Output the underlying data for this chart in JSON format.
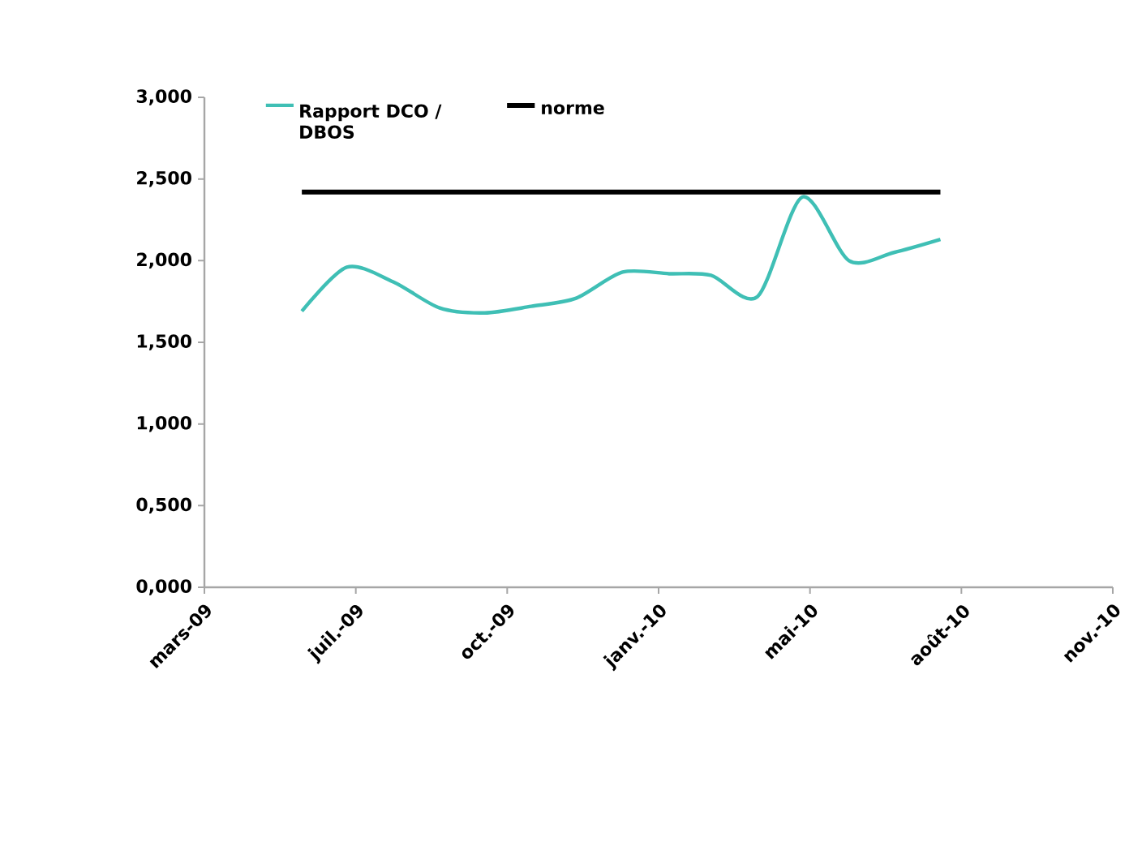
{
  "chart_data": {
    "type": "line",
    "x": [
      "2009-06-01",
      "2009-07-01",
      "2009-08-01",
      "2009-09-01",
      "2009-10-01",
      "2009-11-01",
      "2009-12-01",
      "2010-01-01",
      "2010-02-01",
      "2010-03-01",
      "2010-04-01",
      "2010-05-01",
      "2010-06-01",
      "2010-07-01",
      "2010-08-01"
    ],
    "series": [
      {
        "name": "Rapport DCO / DBOS",
        "color": "#3fbfb5",
        "values": [
          1.69,
          1.96,
          1.87,
          1.71,
          1.68,
          1.72,
          1.77,
          1.93,
          1.92,
          1.91,
          1.78,
          2.39,
          2.0,
          2.05,
          2.13
        ]
      },
      {
        "name": "norme",
        "color": "#000000",
        "x": [
          "2009-06-01",
          "2010-08-01"
        ],
        "values": [
          2.42,
          2.42
        ]
      }
    ],
    "xlim": [
      "2009-03-28",
      "2010-11-24"
    ],
    "xticks": [
      {
        "value": "2009-03-28",
        "label": "mars-09"
      },
      {
        "value": "2009-07-07",
        "label": "juil.-09"
      },
      {
        "value": "2009-10-16",
        "label": "oct.-09"
      },
      {
        "value": "2010-01-25",
        "label": "janv.-10"
      },
      {
        "value": "2010-05-06",
        "label": "mai-10"
      },
      {
        "value": "2010-08-15",
        "label": "août-10"
      },
      {
        "value": "2010-11-24",
        "label": "nov.-10"
      }
    ],
    "ylim": [
      0,
      3
    ],
    "yticks": [
      {
        "value": 0,
        "label": "0,000"
      },
      {
        "value": 0.5,
        "label": "0,500"
      },
      {
        "value": 1,
        "label": "1,000"
      },
      {
        "value": 1.5,
        "label": "1,500"
      },
      {
        "value": 2,
        "label": "2,000"
      },
      {
        "value": 2.5,
        "label": "2,500"
      },
      {
        "value": 3,
        "label": "3,000"
      }
    ],
    "grid": false,
    "legend": "top",
    "marker": "none",
    "line_style": "solid"
  }
}
